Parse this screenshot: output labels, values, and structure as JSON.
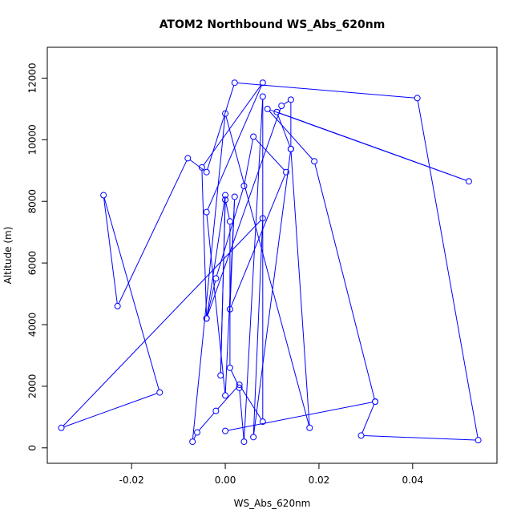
{
  "chart_data": {
    "type": "line",
    "title": "ATOM2 Northbound WS_Abs_620nm",
    "xlabel": "WS_Abs_620nm",
    "ylabel": "Altitude (m)",
    "xlim": [
      -0.038,
      0.058
    ],
    "ylim": [
      -500,
      13000
    ],
    "xticks": [
      -0.02,
      0.0,
      0.02,
      0.04
    ],
    "xtick_labels": [
      "-0.02",
      "0.00",
      "0.02",
      "0.04"
    ],
    "yticks": [
      0,
      2000,
      4000,
      6000,
      8000,
      10000,
      12000
    ],
    "ytick_labels": [
      "0",
      "2000",
      "4000",
      "6000",
      "8000",
      "10000",
      "12000"
    ],
    "grid": false,
    "series": [
      {
        "color": "#0000ff",
        "marker": "open-circle",
        "points": [
          {
            "x": 0.0,
            "y": 550
          },
          {
            "x": 0.032,
            "y": 1500
          },
          {
            "x": 0.019,
            "y": 9300
          },
          {
            "x": 0.009,
            "y": 11000
          },
          {
            "x": 0.052,
            "y": 8650
          },
          {
            "x": 0.011,
            "y": 10900
          },
          {
            "x": 0.014,
            "y": 9700
          },
          {
            "x": 0.018,
            "y": 650
          },
          {
            "x": 0.0,
            "y": 10850
          },
          {
            "x": -0.007,
            "y": 200
          },
          {
            "x": -0.006,
            "y": 500
          },
          {
            "x": -0.002,
            "y": 1200
          },
          {
            "x": 0.003,
            "y": 2050
          },
          {
            "x": 0.008,
            "y": 850
          },
          {
            "x": 0.008,
            "y": 11400
          },
          {
            "x": 0.004,
            "y": 200
          },
          {
            "x": 0.003,
            "y": 1950
          },
          {
            "x": 0.001,
            "y": 2600
          },
          {
            "x": 0.001,
            "y": 7350
          },
          {
            "x": 0.0,
            "y": 8050
          },
          {
            "x": -0.001,
            "y": 2350
          },
          {
            "x": 0.0,
            "y": 8200
          },
          {
            "x": -0.004,
            "y": 4200
          },
          {
            "x": -0.002,
            "y": 5500
          },
          {
            "x": 0.004,
            "y": 8500
          },
          {
            "x": 0.006,
            "y": 10100
          },
          {
            "x": 0.013,
            "y": 8950
          },
          {
            "x": 0.001,
            "y": 4500
          },
          {
            "x": 0.002,
            "y": 8150
          },
          {
            "x": 0.0,
            "y": 1700
          },
          {
            "x": -0.004,
            "y": 7650
          },
          {
            "x": 0.008,
            "y": 11850
          },
          {
            "x": -0.005,
            "y": 9100
          },
          {
            "x": -0.004,
            "y": 4200
          },
          {
            "x": 0.012,
            "y": 11100
          },
          {
            "x": 0.014,
            "y": 11300
          },
          {
            "x": 0.014,
            "y": 9700
          },
          {
            "x": 0.006,
            "y": 350
          },
          {
            "x": 0.008,
            "y": 7450
          },
          {
            "x": -0.035,
            "y": 650
          },
          {
            "x": -0.014,
            "y": 1800
          },
          {
            "x": -0.026,
            "y": 8200
          },
          {
            "x": -0.023,
            "y": 4600
          },
          {
            "x": -0.008,
            "y": 9400
          },
          {
            "x": -0.004,
            "y": 8950
          },
          {
            "x": 0.002,
            "y": 11850
          },
          {
            "x": 0.041,
            "y": 11350
          },
          {
            "x": 0.054,
            "y": 250
          },
          {
            "x": 0.029,
            "y": 400
          },
          {
            "x": 0.032,
            "y": 1500
          }
        ]
      }
    ]
  }
}
